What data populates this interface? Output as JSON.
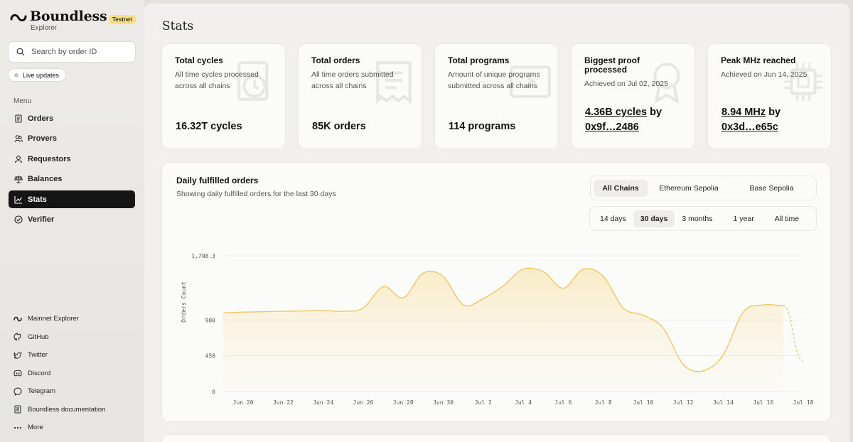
{
  "brand": {
    "name": "Boundless",
    "sub": "Explorer",
    "badge": "Testnet"
  },
  "search": {
    "placeholder": "Search by order ID"
  },
  "live": {
    "label": "Live updates"
  },
  "menu": {
    "title": "Menu",
    "items": [
      {
        "label": "Orders",
        "icon": "document-icon"
      },
      {
        "label": "Provers",
        "icon": "users-icon"
      },
      {
        "label": "Requestors",
        "icon": "user-icon"
      },
      {
        "label": "Balances",
        "icon": "scale-icon"
      },
      {
        "label": "Stats",
        "icon": "chart-icon",
        "active": true
      },
      {
        "label": "Verifier",
        "icon": "check-circle-icon"
      }
    ]
  },
  "footer": [
    {
      "label": "Mainnet Explorer",
      "icon": "boundless-logo-icon"
    },
    {
      "label": "GitHub",
      "icon": "github-icon"
    },
    {
      "label": "Twitter",
      "icon": "twitter-icon"
    },
    {
      "label": "Discord",
      "icon": "discord-icon"
    },
    {
      "label": "Telegram",
      "icon": "telegram-icon"
    },
    {
      "label": "Boundless documentation",
      "icon": "book-icon"
    },
    {
      "label": "More",
      "icon": "more-icon"
    }
  ],
  "page": {
    "title": "Stats"
  },
  "cards": [
    {
      "title": "Total cycles",
      "desc": "All time cycles processed across all chains",
      "value": "16.32T cycles",
      "icon": "clock-document-icon"
    },
    {
      "title": "Total orders",
      "desc": "All time orders submitted across all chains",
      "value": "85K orders",
      "icon": "receipt-icon"
    },
    {
      "title": "Total programs",
      "desc": "Amount of unique programs submitted across all chains",
      "value": "114 programs",
      "icon": "program-icon"
    },
    {
      "title": "Biggest proof processed",
      "desc": "Achieved on Jul 02, 2025",
      "value_main": "4.36B cycles",
      "value_by": " by",
      "value_addr": "0x9f…2486",
      "icon": "award-icon"
    },
    {
      "title": "Peak MHz reached",
      "desc": "Achieved on Jun 14, 2025",
      "value_main": "8.94 MHz",
      "value_by": " by",
      "value_addr": "0x3d…e65c",
      "icon": "chip-icon"
    }
  ],
  "chart_section": {
    "title": "Daily fulfilled orders",
    "subtitle": "Showing daily fulfilled orders for the last 30 days",
    "chains": [
      "All Chains",
      "Ethereum Sepolia",
      "Base Sepolia"
    ],
    "chain_selected": 0,
    "ranges": [
      "14 days",
      "30 days",
      "3 months",
      "1 year",
      "All time"
    ],
    "range_selected": 1
  },
  "chart_data": {
    "type": "area",
    "title": "",
    "xlabel": "",
    "ylabel": "Orders Count",
    "ylim": [
      0,
      1708.3
    ],
    "y_ticks": [
      0,
      450,
      900,
      1708.3
    ],
    "y_tick_labels": [
      "0",
      "450",
      "900",
      "1,708.3"
    ],
    "x_tick_labels": [
      "Jun 20",
      "Jun 22",
      "Jun 24",
      "Jun 26",
      "Jun 28",
      "Jun 30",
      "Jul 2",
      "Jul 4",
      "Jul 6",
      "Jul 8",
      "Jul 10",
      "Jul 12",
      "Jul 14",
      "Jul 16",
      "Jul 18"
    ],
    "grid": true,
    "series": [
      {
        "x": [
          "Jun 19",
          "Jun 20",
          "Jun 21",
          "Jun 22",
          "Jun 23",
          "Jun 24",
          "Jun 25",
          "Jun 26",
          "Jun 27",
          "Jun 28",
          "Jun 29",
          "Jun 30",
          "Jul 1",
          "Jul 2",
          "Jul 3",
          "Jul 4",
          "Jul 5",
          "Jul 6",
          "Jul 7",
          "Jul 8",
          "Jul 9",
          "Jul 10",
          "Jul 11",
          "Jul 12",
          "Jul 13",
          "Jul 14",
          "Jul 15",
          "Jul 16",
          "Jul 17"
        ],
        "values": [
          990,
          1000,
          1005,
          1010,
          1015,
          1020,
          1010,
          1050,
          1320,
          1180,
          1490,
          1450,
          1090,
          1170,
          1330,
          1540,
          1510,
          1300,
          1540,
          1450,
          1050,
          960,
          800,
          340,
          260,
          460,
          1000,
          1090,
          1080
        ]
      }
    ],
    "projected": {
      "x": [
        "Jul 17",
        "Jul 18"
      ],
      "values": [
        1080,
        380
      ]
    }
  }
}
